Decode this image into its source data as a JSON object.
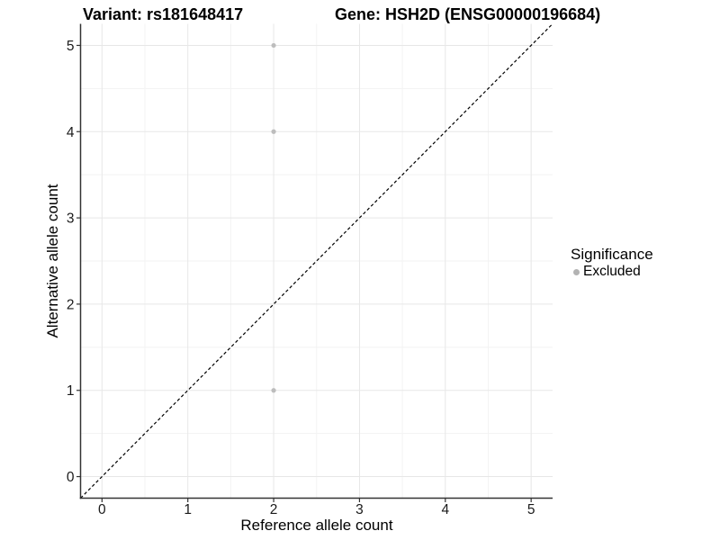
{
  "header": {
    "variant_title": "Variant: rs181648417",
    "gene_title": "Gene: HSH2D (ENSG00000196684)"
  },
  "legend": {
    "title": "Significance",
    "items": [
      {
        "label": "Excluded",
        "marker_color": "#b3b3b3"
      }
    ]
  },
  "chart_data": {
    "type": "scatter",
    "title": "Variant: rs181648417   Gene: HSH2D (ENSG00000196684)",
    "xlabel": "Reference allele count",
    "ylabel": "Alternative allele count",
    "xlim": [
      -0.25,
      5.25
    ],
    "ylim": [
      -0.25,
      5.25
    ],
    "x_ticks": [
      0,
      1,
      2,
      3,
      4,
      5
    ],
    "y_ticks": [
      0,
      1,
      2,
      3,
      4,
      5
    ],
    "minor_ticks": [
      0.5,
      1.5,
      2.5,
      3.5,
      4.5
    ],
    "grid": true,
    "legend_position": "right",
    "series": [
      {
        "name": "Excluded",
        "color": "#bdbdbd",
        "points": [
          [
            2,
            5
          ],
          [
            2,
            4
          ],
          [
            2,
            1
          ]
        ]
      }
    ],
    "reference_line": {
      "name": "identity-line y=x",
      "style": "dashed",
      "color": "#000000",
      "from": [
        -0.25,
        -0.25
      ],
      "to": [
        5.25,
        5.25
      ]
    },
    "colors": {
      "major_grid": "#e7e7e7",
      "minor_grid": "#f3f3f3",
      "axis_line": "#333333",
      "tick_label": "#1a1a1a",
      "point": "#bdbdbd"
    }
  }
}
